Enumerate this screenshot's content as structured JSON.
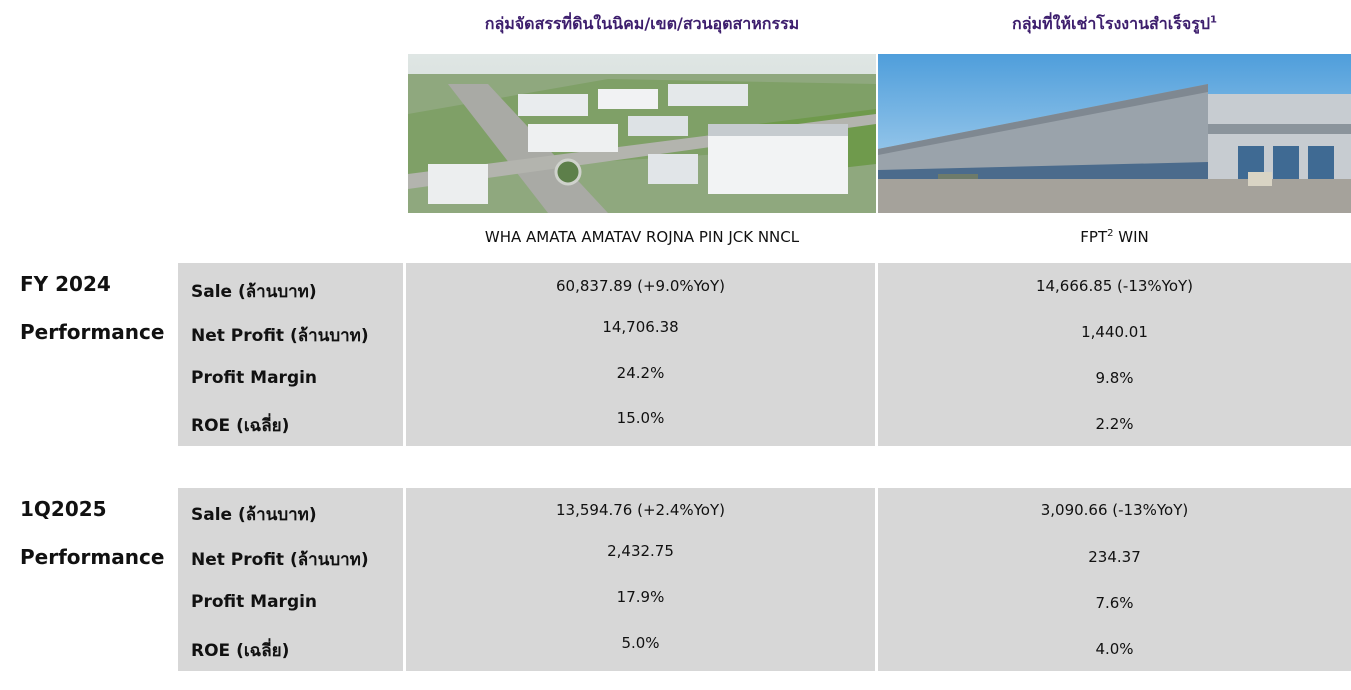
{
  "columns": {
    "estate": {
      "title": "กลุ่มจัดสรรที่ดินในนิคม/เขต/สวนอุตสาหกรรม",
      "companies": "WHA  AMATA  AMATAV ROJNA PIN JCK NNCL"
    },
    "factory": {
      "title": "กลุ่มที่ให้เช่าโรงงานสำเร็จรูป",
      "title_sup": "1",
      "companies_pre": "FPT",
      "companies_sup": "2",
      "companies_post": " WIN"
    }
  },
  "sections": [
    {
      "label_line1": "FY 2024",
      "label_line2": "Performance",
      "rows": [
        {
          "label": "Sale (ล้านบาท)",
          "estate": "60,837.89 (+9.0%YoY)",
          "factory": "14,666.85 (-13%YoY)"
        },
        {
          "label": "Net Profit (ล้านบาท)",
          "estate": "14,706.38",
          "factory": "1,440.01"
        },
        {
          "label": "Profit Margin",
          "estate": "24.2%",
          "factory": "9.8%"
        },
        {
          "label": "ROE (เฉลี่ย)",
          "estate": "15.0%",
          "factory": "2.2%"
        }
      ]
    },
    {
      "label_line1": "1Q2025",
      "label_line2": "Performance",
      "rows": [
        {
          "label": "Sale (ล้านบาท)",
          "estate": "13,594.76 (+2.4%YoY)",
          "factory": "3,090.66 (-13%YoY)"
        },
        {
          "label": "Net Profit (ล้านบาท)",
          "estate": "2,432.75",
          "factory": "234.37"
        },
        {
          "label": "Profit Margin",
          "estate": "17.9%",
          "factory": "7.6%"
        },
        {
          "label": "ROE (เฉลี่ย)",
          "estate": "5.0%",
          "factory": "4.0%"
        }
      ]
    }
  ]
}
